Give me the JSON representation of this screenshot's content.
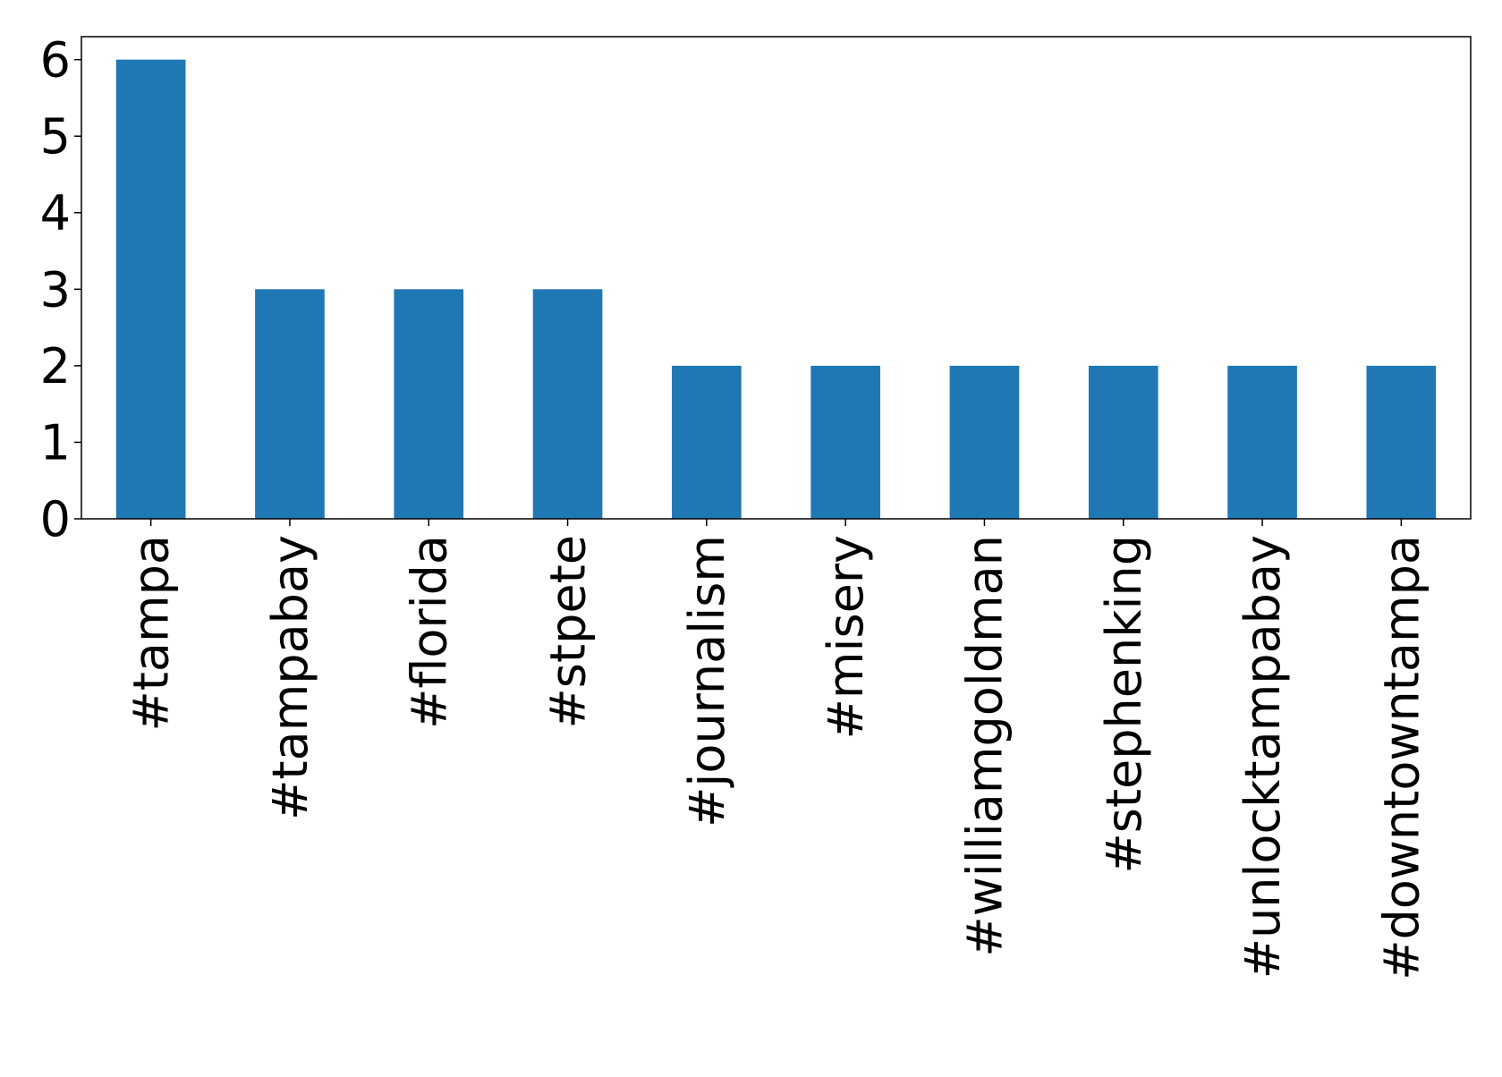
{
  "chart_data": {
    "type": "bar",
    "categories": [
      "#tampa",
      "#tampabay",
      "#florida",
      "#stpete",
      "#journalism",
      "#misery",
      "#williamgoldman",
      "#stephenking",
      "#unlocktampabay",
      "#downtowntampa"
    ],
    "values": [
      6,
      3,
      3,
      3,
      2,
      2,
      2,
      2,
      2,
      2
    ],
    "color": "#1f77b4",
    "ylim": [
      0,
      6.3
    ],
    "yticks": [
      0,
      1,
      2,
      3,
      4,
      5,
      6
    ],
    "grid": false
  }
}
